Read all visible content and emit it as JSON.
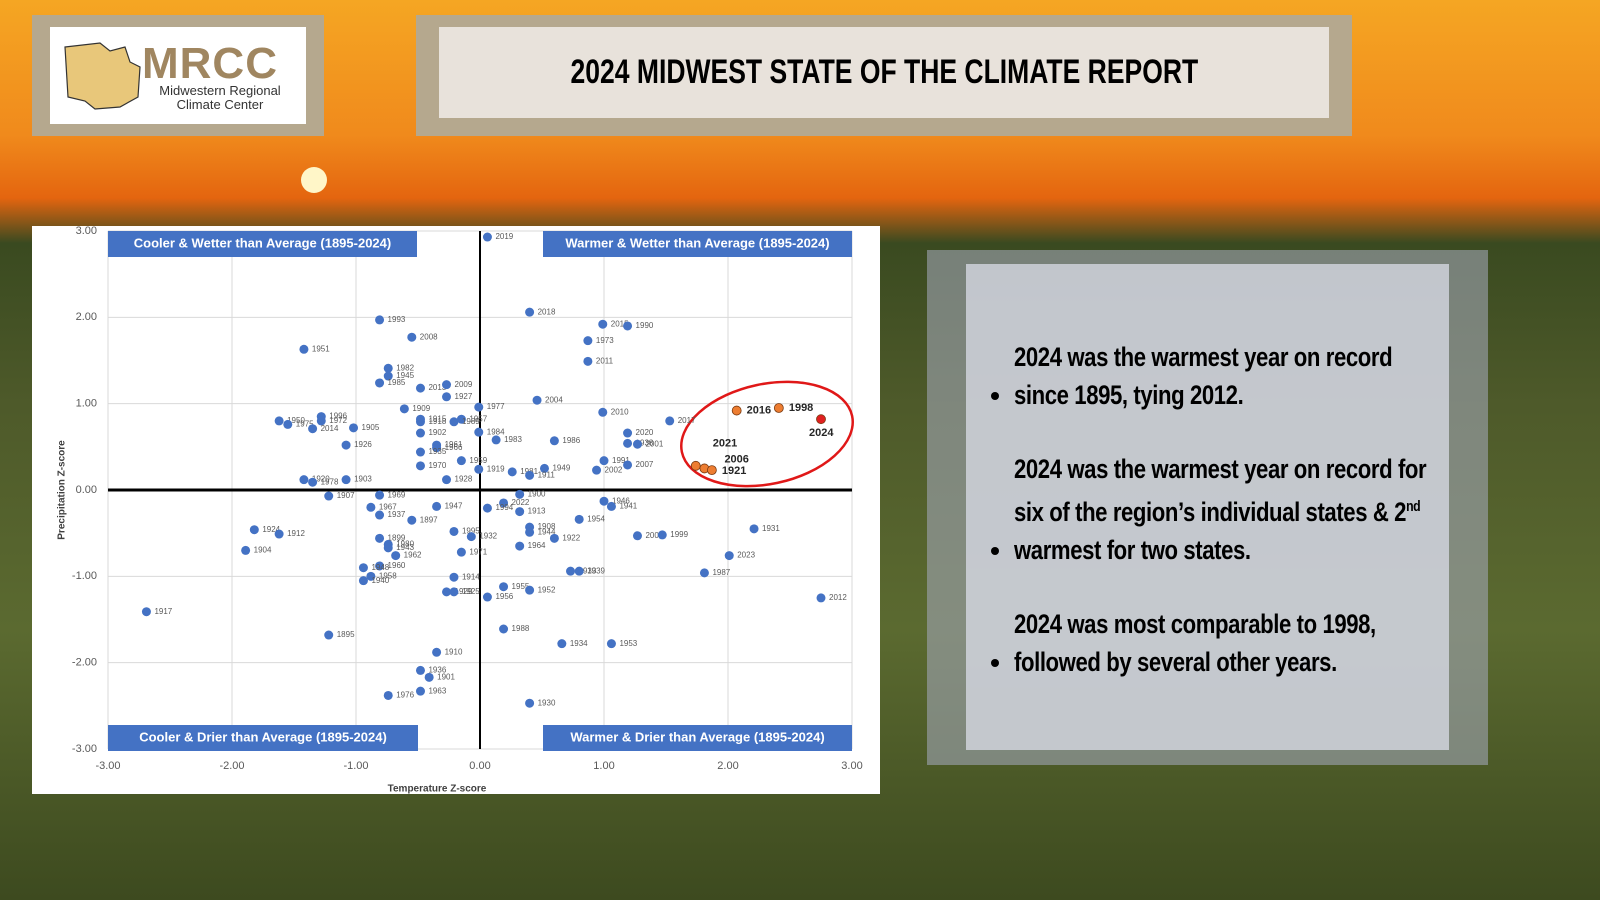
{
  "logo": {
    "name": "MRCC",
    "line1": "Midwestern Regional",
    "line2": "Climate Center"
  },
  "title": "2024 MIDWEST STATE OF THE CLIMATE REPORT",
  "bullets": [
    [
      "2024 was the warmest year on record since 1895, tying 2012."
    ],
    [
      "2024 was the warmest year on record for six of the region’s individual states & 2",
      "nd",
      " warmest for two states."
    ],
    [
      "2024 was most comparable to 1998, followed by several other years."
    ]
  ],
  "chart_data": {
    "type": "scatter",
    "xlabel": "Temperature Z-score",
    "ylabel": "Precipitation Z-score",
    "quadrants": [
      "Cooler & Wetter than Average (1895-2024)",
      "Warmer & Wetter than Average (1895-2024)",
      "Cooler & Drier than Average (1895-2024)",
      "Warmer & Drier than Average (1895-2024)"
    ],
    "xlim": [
      -3,
      3
    ],
    "ylim": [
      -3,
      3
    ],
    "grid": true,
    "xticks": [
      {
        "value": -3,
        "label": "-3.00"
      },
      {
        "value": -2,
        "label": "-2.00"
      },
      {
        "value": -1,
        "label": "-1.00"
      },
      {
        "value": 0,
        "label": "0.00"
      },
      {
        "value": 1,
        "label": "1.00"
      },
      {
        "value": 2,
        "label": "2.00"
      },
      {
        "value": 3,
        "label": "3.00"
      }
    ],
    "yticks": [
      {
        "value": -3,
        "label": "-3.00"
      },
      {
        "value": -2,
        "label": "-2.00"
      },
      {
        "value": -1,
        "label": "-1.00"
      },
      {
        "value": 0,
        "label": "0.00"
      },
      {
        "value": 1,
        "label": "1.00"
      },
      {
        "value": 2,
        "label": "2.00"
      },
      {
        "value": 3,
        "label": "3.00"
      }
    ],
    "series": [
      {
        "color": "#4472c4",
        "labels": [
          "2019",
          "2018",
          "1993",
          "2008",
          "1951",
          "2015",
          "1990",
          "1973",
          "2011",
          "1982",
          "1945",
          "1985",
          "2013",
          "2009",
          "1927",
          "2004",
          "1977",
          "1909",
          "2010",
          "2017",
          "1950",
          "1975",
          "1996",
          "1972",
          "2014",
          "1905",
          "1915",
          "1918",
          "1957",
          "1989",
          "1984",
          "1983",
          "1902",
          "1986",
          "2020",
          "1938",
          "2001",
          "1926",
          "1961",
          "1966",
          "1935",
          "1959",
          "1970",
          "1991",
          "2007",
          "2002",
          "1949",
          "1981",
          "1911",
          "1919",
          "1920",
          "1978",
          "1903",
          "1928",
          "1907",
          "1969",
          "1946",
          "1941",
          "1900",
          "1947",
          "1967",
          "1937",
          "2022",
          "1994",
          "1913",
          "1897",
          "1954",
          "1924",
          "1912",
          "1908",
          "1944",
          "1995",
          "1932",
          "1899",
          "1980",
          "1943",
          "2005",
          "1999",
          "1922",
          "1931",
          "1904",
          "1964",
          "1962",
          "1971",
          "1960",
          "1933",
          "1939",
          "2023",
          "1987",
          "1958",
          "1948",
          "1940",
          "1914",
          "1929",
          "1925",
          "1955",
          "1956",
          "1952",
          "2012",
          "1917",
          "1895",
          "1988",
          "1934",
          "1953",
          "1910",
          "1936",
          "1901",
          "1963",
          "1976",
          "1930"
        ],
        "x": [
          0.06,
          0.4,
          -0.81,
          -0.55,
          -1.42,
          0.99,
          1.19,
          0.87,
          0.87,
          -0.74,
          -0.74,
          -0.81,
          -0.48,
          -0.27,
          -0.27,
          0.46,
          -0.01,
          -0.61,
          0.99,
          1.53,
          -1.62,
          -1.55,
          -1.28,
          -1.28,
          -1.35,
          -1.02,
          -0.48,
          -0.48,
          -0.15,
          -0.21,
          -0.01,
          0.13,
          -0.48,
          0.6,
          1.19,
          1.19,
          1.27,
          -1.08,
          -0.35,
          -0.35,
          -0.48,
          -0.15,
          -0.48,
          1.0,
          1.19,
          0.94,
          0.52,
          0.26,
          0.4,
          -0.01,
          -1.42,
          -1.35,
          -1.08,
          -0.27,
          -1.22,
          -0.81,
          1.0,
          1.06,
          0.32,
          -0.35,
          -0.88,
          -0.81,
          0.19,
          0.06,
          0.32,
          -0.55,
          0.8,
          -1.82,
          -1.62,
          0.4,
          0.4,
          -0.21,
          -0.07,
          -0.81,
          -0.74,
          -0.74,
          1.27,
          1.47,
          0.6,
          2.21,
          -1.89,
          0.32,
          -0.68,
          -0.15,
          -0.81,
          0.73,
          0.8,
          2.01,
          1.81,
          -0.88,
          -0.94,
          -0.94,
          -0.21,
          -0.27,
          -0.21,
          0.19,
          0.06,
          0.4,
          2.75,
          -2.69,
          -1.22,
          0.19,
          0.66,
          1.06,
          -0.35,
          -0.48,
          -0.41,
          -0.48,
          -0.74,
          0.4
        ],
        "y": [
          2.93,
          2.06,
          1.97,
          1.77,
          1.63,
          1.92,
          1.9,
          1.73,
          1.49,
          1.41,
          1.32,
          1.24,
          1.18,
          1.22,
          1.08,
          1.04,
          0.96,
          0.94,
          0.9,
          0.8,
          0.8,
          0.76,
          0.85,
          0.8,
          0.71,
          0.72,
          0.82,
          0.79,
          0.82,
          0.79,
          0.67,
          0.58,
          0.66,
          0.57,
          0.66,
          0.54,
          0.53,
          0.52,
          0.52,
          0.49,
          0.44,
          0.34,
          0.28,
          0.34,
          0.29,
          0.23,
          0.25,
          0.21,
          0.17,
          0.24,
          0.12,
          0.09,
          0.12,
          0.12,
          -0.07,
          -0.06,
          -0.13,
          -0.19,
          -0.05,
          -0.19,
          -0.2,
          -0.29,
          -0.15,
          -0.21,
          -0.25,
          -0.35,
          -0.34,
          -0.46,
          -0.51,
          -0.43,
          -0.49,
          -0.48,
          -0.54,
          -0.56,
          -0.63,
          -0.67,
          -0.53,
          -0.52,
          -0.56,
          -0.45,
          -0.7,
          -0.65,
          -0.76,
          -0.72,
          -0.88,
          -0.94,
          -0.94,
          -0.76,
          -0.96,
          -1.0,
          -0.9,
          -1.05,
          -1.01,
          -1.18,
          -1.18,
          -1.12,
          -1.24,
          -1.16,
          -1.25,
          -1.41,
          -1.68,
          -1.61,
          -1.78,
          -1.78,
          -1.88,
          -2.09,
          -2.17,
          -2.33,
          -2.38,
          -2.47
        ]
      },
      {
        "color": "#ed7d31",
        "labels": [
          "2016",
          "1998",
          "2021",
          "2006",
          "1921"
        ],
        "x": [
          2.07,
          2.41,
          1.74,
          1.81,
          1.87
        ],
        "y": [
          0.92,
          0.95,
          0.28,
          0.25,
          0.23
        ]
      },
      {
        "color": "#e02020",
        "labels": [
          "2024"
        ],
        "x": [
          2.75
        ],
        "y": [
          0.82
        ]
      }
    ]
  }
}
